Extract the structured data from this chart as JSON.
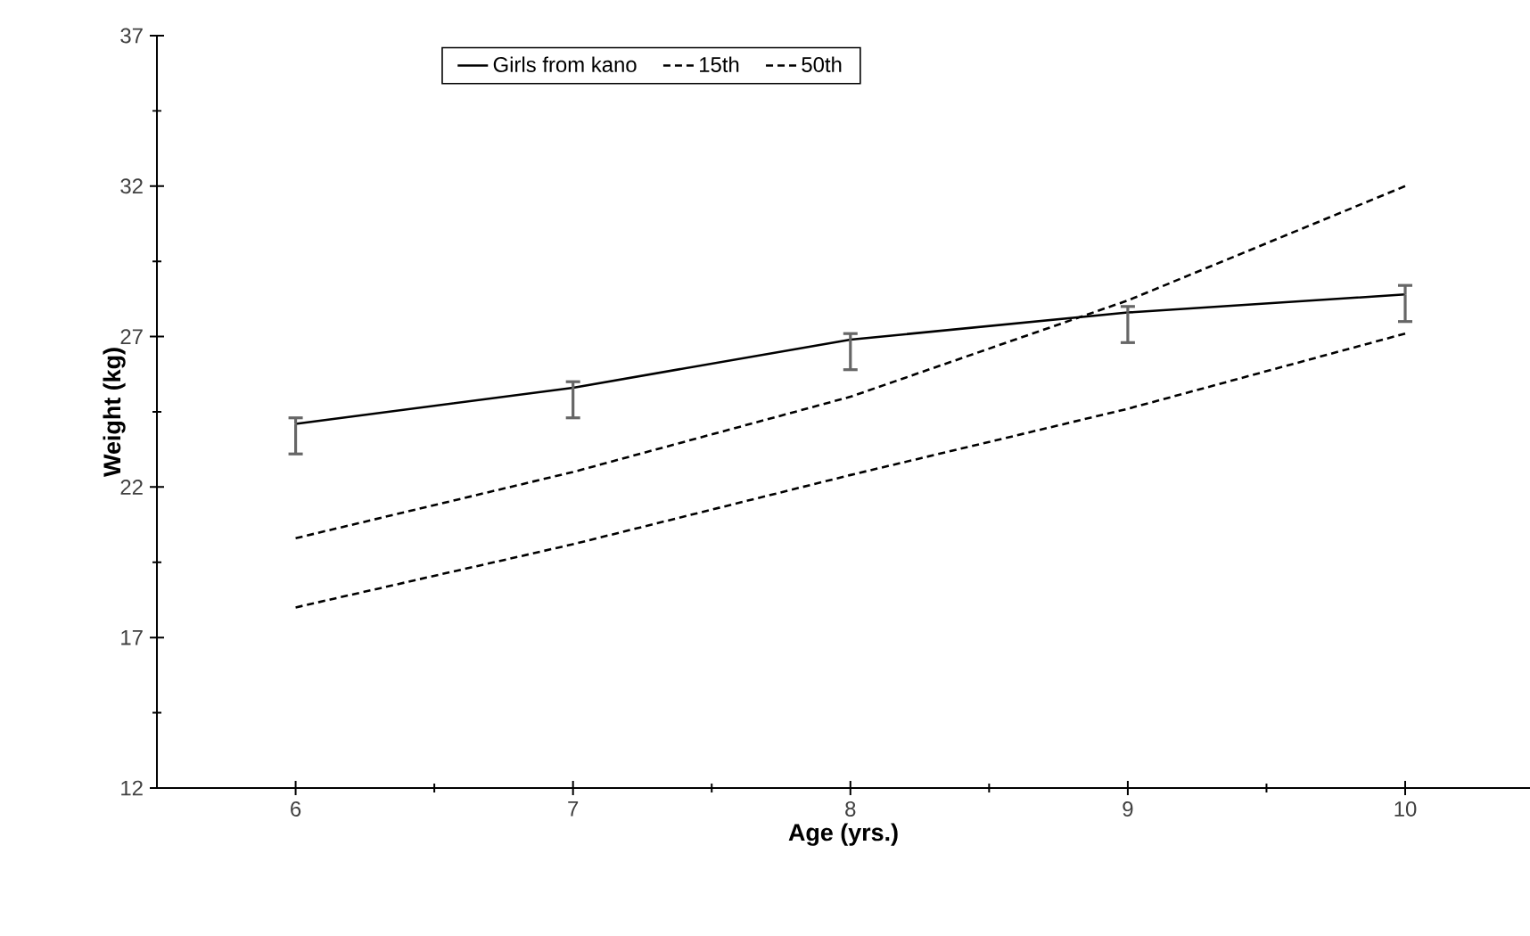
{
  "chart_data": {
    "type": "line",
    "xlabel": "Age (yrs.)",
    "ylabel": "Weight (kg)",
    "x": [
      6,
      7,
      8,
      9,
      10
    ],
    "series": [
      {
        "name": "Girls from kano",
        "color": "#000000",
        "line_style": "solid",
        "values": [
          24.1,
          25.3,
          26.9,
          27.8,
          28.4
        ],
        "errors": [
          [
            23.1,
            24.3
          ],
          [
            24.3,
            25.5
          ],
          [
            25.9,
            27.1
          ],
          [
            26.8,
            28.0
          ],
          [
            27.5,
            28.7
          ]
        ]
      },
      {
        "name": "15th",
        "color": "#000000",
        "line_style": "dashed",
        "values": [
          18.0,
          20.1,
          22.4,
          24.6,
          27.1
        ]
      },
      {
        "name": "50th",
        "color": "#000000",
        "line_style": "dashed",
        "values": [
          20.3,
          22.5,
          25.0,
          28.2,
          32.0
        ]
      }
    ],
    "xlim": [
      5.5,
      10.45
    ],
    "ylim": [
      12,
      37
    ],
    "xticks": [
      6,
      7,
      8,
      9,
      10
    ],
    "yticks": [
      12,
      17,
      22,
      27,
      32,
      37
    ],
    "grid": false,
    "legend": "top",
    "marker": "none"
  }
}
